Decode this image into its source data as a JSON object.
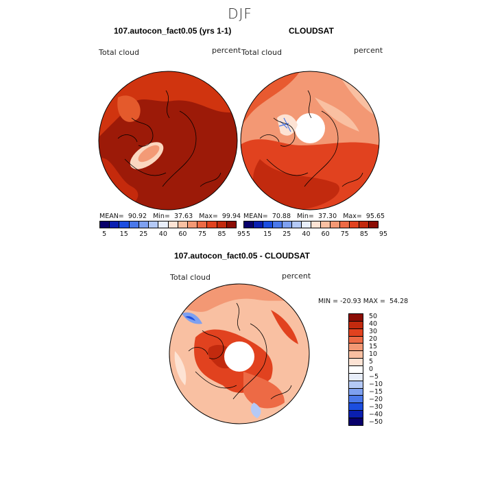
{
  "page": {
    "title": "DJF"
  },
  "panels": [
    {
      "title": "107.autocon_fact0.05 (yrs 1-1)",
      "variable": "Total cloud",
      "units": "percent",
      "stats": {
        "mean_label": "MEAN=",
        "mean": "90.92",
        "min_label": "Min=",
        "min": "37.63",
        "max_label": "Max=",
        "max": "99.94"
      }
    },
    {
      "title": "CLOUDSAT",
      "variable": "Total cloud",
      "units": "percent",
      "stats": {
        "mean_label": "MEAN=",
        "mean": "70.88",
        "min_label": "Min=",
        "min": "37.30",
        "max_label": "Max=",
        "max": "95.65"
      }
    },
    {
      "title": "107.autocon_fact0.05 - CLOUDSAT",
      "variable": "Total cloud",
      "units": "percent",
      "range_text": "MIN = -20.93 MAX =  54.28"
    }
  ],
  "abs_colorbar": {
    "colors": [
      "#08006b",
      "#0a1fb0",
      "#1c4ee0",
      "#4a78ea",
      "#7ea0f0",
      "#b4c9f6",
      "#e8eefa",
      "#fde3d4",
      "#f9c0a2",
      "#f39874",
      "#ed6a45",
      "#e1421f",
      "#c22a0e",
      "#8b0d05"
    ],
    "tick_labels": [
      "5",
      "15",
      "25",
      "40",
      "60",
      "75",
      "85",
      "95"
    ]
  },
  "diff_colorbar": {
    "colors": [
      "#8b0d05",
      "#c22a0e",
      "#e1421f",
      "#ed6a45",
      "#f39874",
      "#f9c0a2",
      "#fde3d4",
      "#ffffff",
      "#e8eefa",
      "#b4c9f6",
      "#7ea0f0",
      "#4a78ea",
      "#1c4ee0",
      "#0a1fb0",
      "#08006b"
    ],
    "tick_labels": [
      "50",
      "40",
      "30",
      "20",
      "15",
      "10",
      "5",
      "0",
      "−5",
      "−10",
      "−15",
      "−20",
      "−30",
      "−40",
      "−50"
    ]
  }
}
